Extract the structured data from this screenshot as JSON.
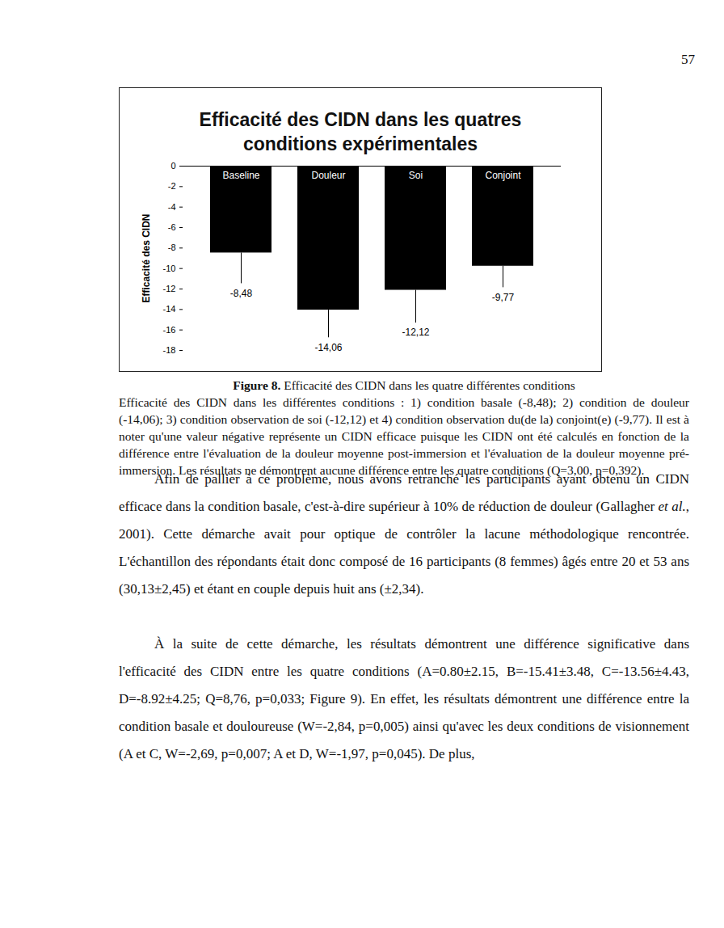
{
  "page_number": "57",
  "chart_data": {
    "type": "bar",
    "title": "Efficacité des CIDN dans les quatres conditions expérimentales",
    "ylabel": "Efficacité des CIDN",
    "categories": [
      "Baseline",
      "Douleur",
      "Soi",
      "Conjoint"
    ],
    "values": [
      -8.48,
      -14.06,
      -12.12,
      -9.77
    ],
    "value_labels": [
      "-8,48",
      "-14,06",
      "-12,12",
      "-9,77"
    ],
    "errors": [
      3.0,
      2.7,
      3.2,
      2.1
    ],
    "color": "#000000",
    "ylim": [
      -18,
      0
    ],
    "yticks": [
      -18,
      -16,
      -14,
      -12,
      -10,
      -8,
      -6,
      -4,
      -2,
      0
    ],
    "grid": false,
    "data_labels": true,
    "tick_labels": "y"
  },
  "figure_caption": {
    "label": "Figure 8.",
    "title": "Efficacité des CIDN dans les quatre différentes conditions",
    "text": "Efficacité des CIDN dans les différentes conditions : 1) condition basale (-8,48); 2) condition de douleur (-14,06); 3) condition observation de soi (-12,12) et 4) condition observation du(de la) conjoint(e) (-9,77). Il est à noter qu'une valeur négative représente un CIDN efficace puisque les CIDN ont été calculés en fonction de la différence entre l'évaluation de la douleur moyenne post-immersion et l'évaluation de la douleur moyenne pré-immersion. Les résultats ne démontrent aucune différence entre les quatre conditions (Q=3,00, p=0,392)."
  },
  "paragraphs": [
    [
      {
        "text": "Afin de pallier à ce problème, nous avons retranché les participants ayant obtenu un CIDN efficace dans la condition basale, c'est-à-dire supérieur à 10% de réduction de douleur (Gallagher "
      },
      {
        "text": "et al.",
        "italic": true
      },
      {
        "text": ", 2001). Cette démarche avait pour optique de contrôler la lacune méthodologique rencontrée. L'échantillon des répondants était donc composé de 16 participants (8 femmes) âgés entre 20 et 53 ans (30,13±2,45) et étant en couple depuis huit ans (±2,34)."
      }
    ],
    [
      {
        "text": "À la suite de cette démarche, les résultats démontrent une différence significative dans l'efficacité des CIDN entre les quatre conditions (A=0.80±2.15, B=-15.41±3.48, C=-13.56±4.43, D=-8.92±4.25; Q=8,76, p=0,033; Figure 9). En effet, les résultats démontrent une différence entre la condition basale et douloureuse (W=-2,84, p=0,005) ainsi qu'avec les deux conditions de visionnement (A et C, W=-2,69, p=0,007; A et D, W=-1,97, p=0,045). De plus,"
      }
    ]
  ]
}
